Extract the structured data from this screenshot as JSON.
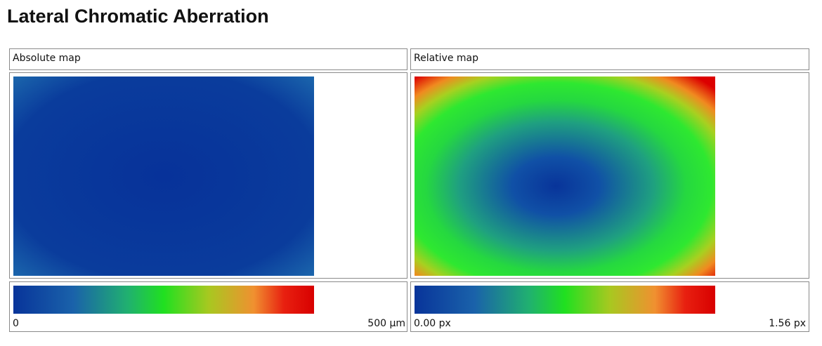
{
  "header": {
    "title": "Lateral Chromatic Aberration"
  },
  "panels": [
    {
      "title": "Absolute map",
      "scale_min": "0",
      "scale_max": "500 µm"
    },
    {
      "title": "Relative map",
      "scale_min": "0.00 px",
      "scale_max": "1.56 px"
    }
  ]
}
